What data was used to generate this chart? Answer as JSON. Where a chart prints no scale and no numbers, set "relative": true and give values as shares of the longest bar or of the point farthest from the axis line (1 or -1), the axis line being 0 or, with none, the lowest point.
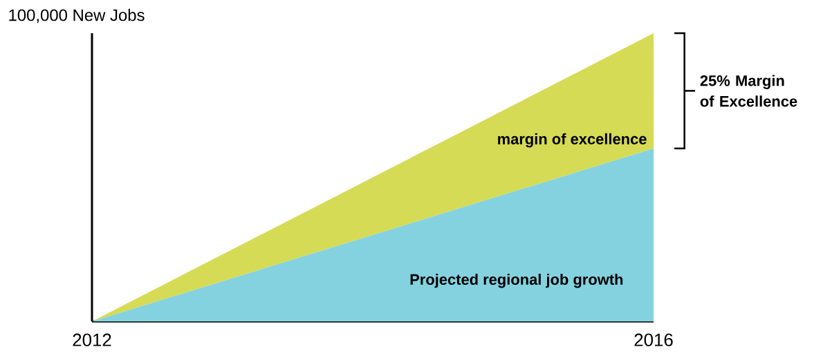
{
  "chart_data": {
    "type": "area",
    "stacked": true,
    "relative": true,
    "ylabel": "100,000 New Jobs",
    "x": [
      2012,
      2016
    ],
    "xlim": [
      2012,
      2016
    ],
    "xticks": [
      2012,
      2016
    ],
    "series": [
      {
        "name": "Projected regional job growth",
        "color": "#84d2e0",
        "values": [
          0,
          0.6
        ]
      },
      {
        "name": "margin of excellence",
        "color": "#d6db55",
        "values": [
          0,
          0.4
        ]
      }
    ],
    "annotations": [
      "25% Margin of Excellence"
    ]
  }
}
